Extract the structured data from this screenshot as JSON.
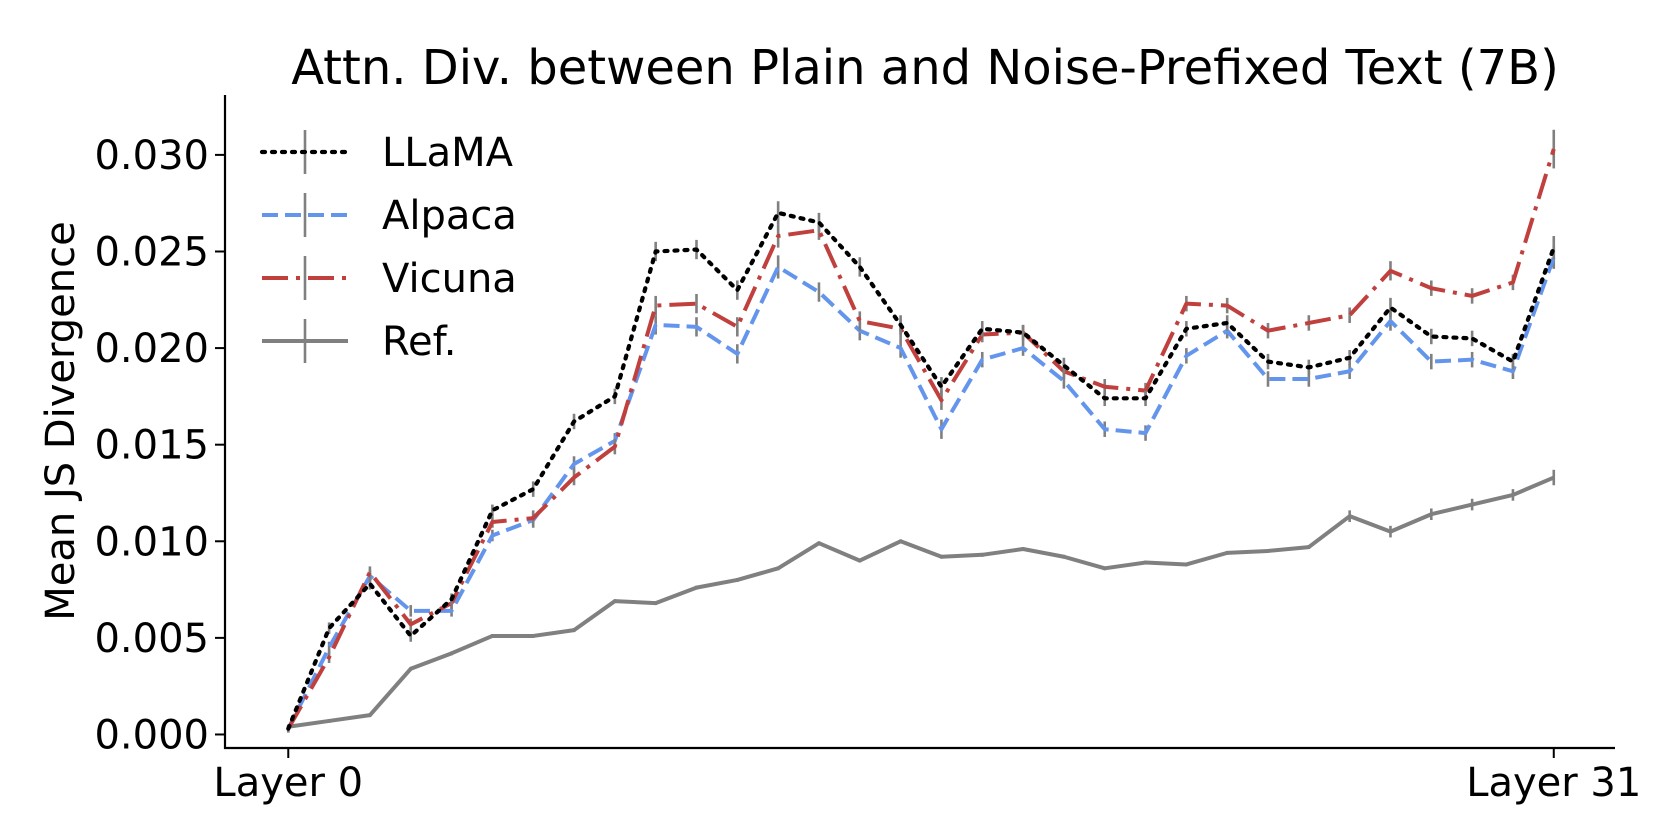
{
  "chart_data": {
    "type": "line",
    "title": "Attn. Div. between Plain and Noise-Prefixed Text (7B)",
    "xlabel": "",
    "ylabel": "Mean JS Divergence",
    "x": [
      0,
      1,
      2,
      3,
      4,
      5,
      6,
      7,
      8,
      9,
      10,
      11,
      12,
      13,
      14,
      15,
      16,
      17,
      18,
      19,
      20,
      21,
      22,
      23,
      24,
      25,
      26,
      27,
      28,
      29,
      30,
      31
    ],
    "xtick_labels": [
      {
        "x": 0,
        "label": "Layer 0"
      },
      {
        "x": 31,
        "label": "Layer 31"
      }
    ],
    "yticks": [
      0.0,
      0.005,
      0.01,
      0.015,
      0.02,
      0.025,
      0.03
    ],
    "ytick_labels": [
      "0.000",
      "0.005",
      "0.010",
      "0.015",
      "0.020",
      "0.025",
      "0.030"
    ],
    "xlim": [
      -1.55,
      32.5
    ],
    "ylim": [
      -0.0007,
      0.0331
    ],
    "legend_position": "upper-left",
    "series": [
      {
        "name": "LLaMA",
        "color": "#000000",
        "style": "dotted",
        "values": [
          0.0003,
          0.0055,
          0.0078,
          0.0051,
          0.007,
          0.0116,
          0.0127,
          0.0162,
          0.0175,
          0.025,
          0.0251,
          0.023,
          0.027,
          0.0265,
          0.0242,
          0.0212,
          0.018,
          0.021,
          0.0208,
          0.0191,
          0.0174,
          0.0174,
          0.021,
          0.0213,
          0.0193,
          0.019,
          0.0195,
          0.0221,
          0.0206,
          0.0205,
          0.0193,
          0.0252
        ],
        "errors": [
          0.0002,
          0.0003,
          0.0003,
          0.0003,
          0.0003,
          0.0003,
          0.0004,
          0.0004,
          0.0004,
          0.0005,
          0.0005,
          0.0005,
          0.0006,
          0.0005,
          0.0005,
          0.0005,
          0.0005,
          0.0004,
          0.0004,
          0.0004,
          0.0004,
          0.0004,
          0.0004,
          0.0004,
          0.0004,
          0.0004,
          0.0004,
          0.0005,
          0.0004,
          0.0004,
          0.0004,
          0.0006
        ]
      },
      {
        "name": "Alpaca",
        "color": "#6495ED",
        "style": "dashed",
        "values": [
          0.0003,
          0.0045,
          0.0082,
          0.0064,
          0.0064,
          0.0103,
          0.0111,
          0.014,
          0.0152,
          0.0212,
          0.0211,
          0.0197,
          0.0242,
          0.0229,
          0.0209,
          0.02,
          0.0158,
          0.0194,
          0.02,
          0.0183,
          0.0158,
          0.0156,
          0.0196,
          0.0209,
          0.0184,
          0.0184,
          0.0188,
          0.0214,
          0.0193,
          0.0194,
          0.0188,
          0.0247
        ],
        "errors": [
          0.0002,
          0.0003,
          0.0003,
          0.0003,
          0.0003,
          0.0003,
          0.0004,
          0.0004,
          0.0004,
          0.0005,
          0.0005,
          0.0005,
          0.0006,
          0.0005,
          0.0005,
          0.0005,
          0.0005,
          0.0004,
          0.0004,
          0.0004,
          0.0004,
          0.0004,
          0.0004,
          0.0004,
          0.0004,
          0.0004,
          0.0004,
          0.0005,
          0.0004,
          0.0004,
          0.0004,
          0.0006
        ]
      },
      {
        "name": "Vicuna",
        "color": "#C0403E",
        "style": "dashdot",
        "values": [
          0.0003,
          0.004,
          0.0084,
          0.0057,
          0.0068,
          0.011,
          0.0112,
          0.0133,
          0.0149,
          0.0222,
          0.0223,
          0.0211,
          0.0258,
          0.0261,
          0.0214,
          0.021,
          0.0173,
          0.0207,
          0.0208,
          0.0188,
          0.018,
          0.0178,
          0.0223,
          0.0222,
          0.0209,
          0.0213,
          0.0217,
          0.024,
          0.0231,
          0.0227,
          0.0234,
          0.0303
        ],
        "errors": [
          0.0002,
          0.0003,
          0.0003,
          0.0003,
          0.0003,
          0.0003,
          0.0004,
          0.0004,
          0.0004,
          0.0005,
          0.0005,
          0.0005,
          0.0006,
          0.0005,
          0.0005,
          0.0005,
          0.0005,
          0.0004,
          0.0004,
          0.0004,
          0.0004,
          0.0004,
          0.0004,
          0.0004,
          0.0004,
          0.0004,
          0.0004,
          0.0005,
          0.0004,
          0.0004,
          0.0004,
          0.001
        ]
      },
      {
        "name": "Ref.",
        "color": "#808080",
        "style": "solid",
        "values": [
          0.0004,
          0.0007,
          0.001,
          0.0034,
          0.0042,
          0.0051,
          0.0051,
          0.0054,
          0.0069,
          0.0068,
          0.0076,
          0.008,
          0.0086,
          0.0099,
          0.009,
          0.01,
          0.0092,
          0.0093,
          0.0096,
          0.0092,
          0.0086,
          0.0089,
          0.0088,
          0.0094,
          0.0095,
          0.0097,
          0.0113,
          0.0105,
          0.0114,
          0.0119,
          0.0124,
          0.0133
        ],
        "errors": [
          0.0001,
          0.0001,
          0.0001,
          0.0001,
          0.0001,
          0.0001,
          0.0001,
          0.0001,
          0.0001,
          0.0001,
          0.0001,
          0.0001,
          0.0001,
          0.0001,
          0.0001,
          0.0001,
          0.0001,
          0.0001,
          0.0001,
          0.0001,
          0.0001,
          0.0001,
          0.0001,
          0.0001,
          0.0001,
          0.0001,
          0.0003,
          0.0003,
          0.0003,
          0.0003,
          0.0003,
          0.0004
        ]
      }
    ]
  }
}
